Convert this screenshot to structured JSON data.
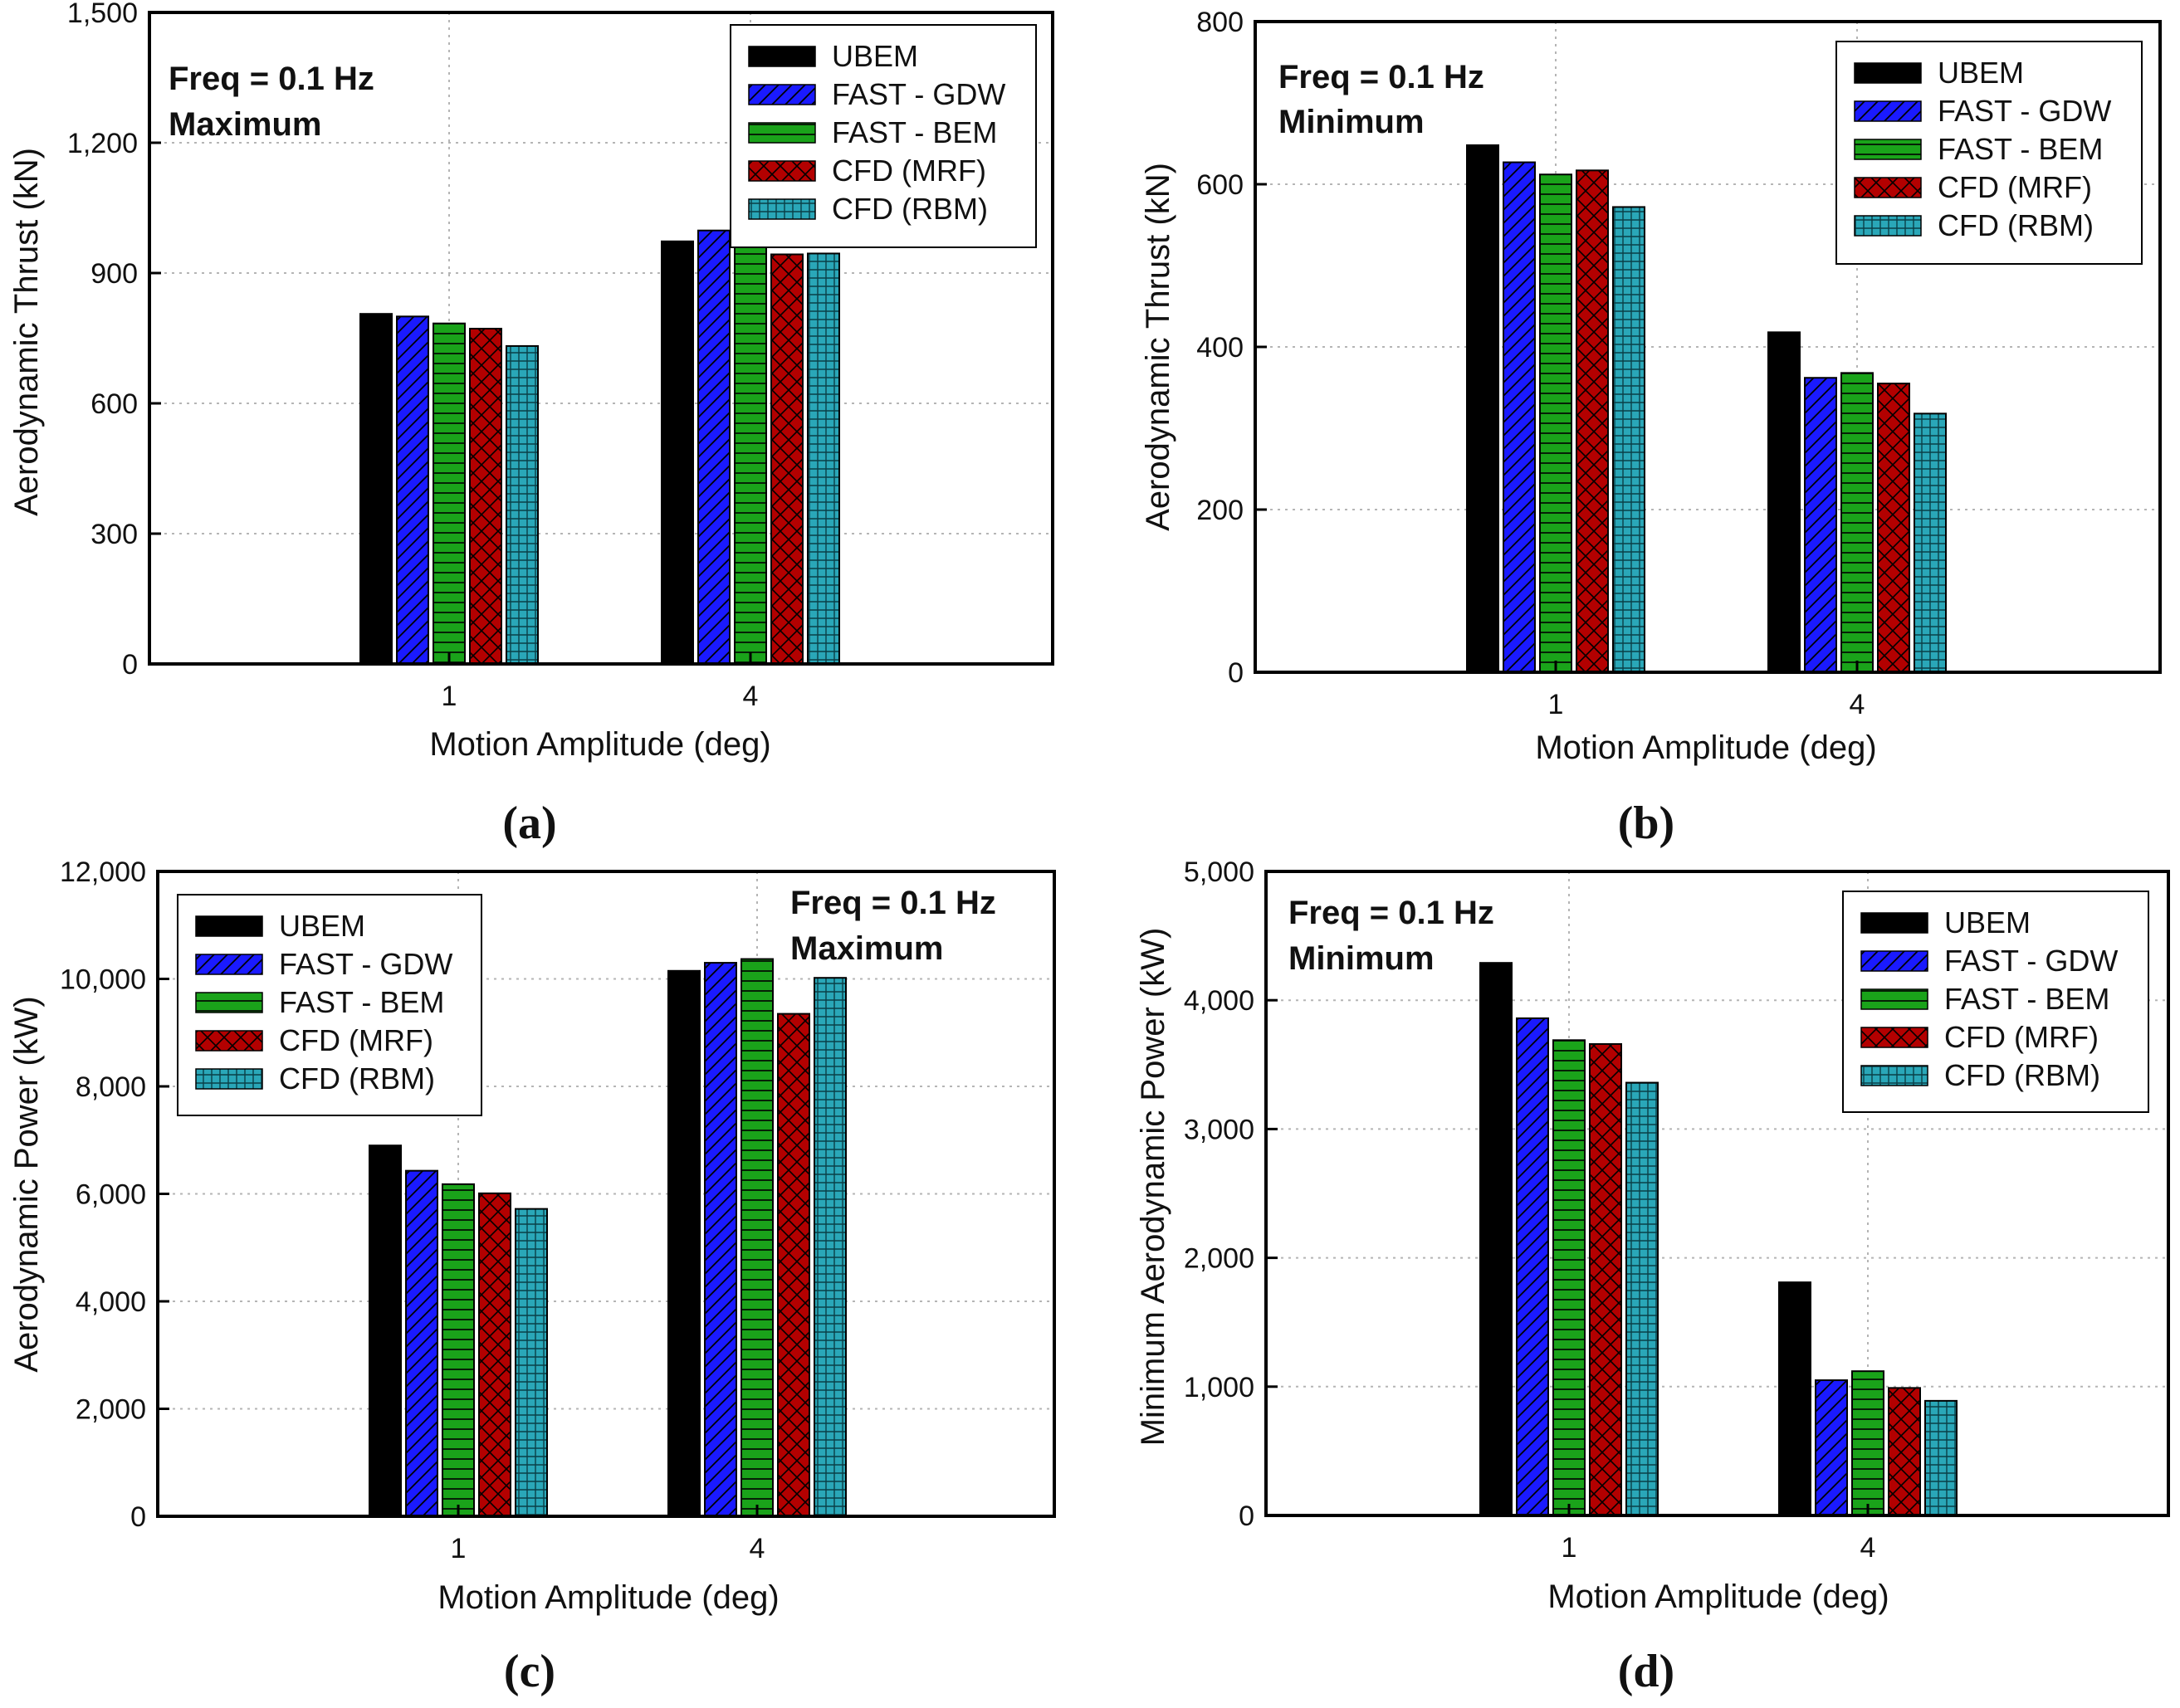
{
  "series_styles": [
    {
      "name": "UBEM",
      "color": "#000000",
      "pattern": "solid"
    },
    {
      "name": "FAST - GDW",
      "color": "#1a1aff",
      "pattern": "diagonal"
    },
    {
      "name": "FAST - BEM",
      "color": "#1aa31a",
      "pattern": "horizontal"
    },
    {
      "name": "CFD (MRF)",
      "color": "#b30000",
      "pattern": "crosshatch"
    },
    {
      "name": "CFD (RBM)",
      "color": "#2aa7b8",
      "pattern": "grid"
    }
  ],
  "chart_data": [
    {
      "panel": "(a)",
      "type": "bar",
      "title": "",
      "annotation": [
        "Freq = 0.1 Hz",
        "Maximum"
      ],
      "xlabel": "Motion Amplitude (deg)",
      "ylabel": "Aerodynamic Thrust (kN)",
      "categories": [
        "1",
        "4"
      ],
      "ylim": [
        0,
        1500
      ],
      "yticks": [
        0,
        300,
        600,
        900,
        1200,
        1500
      ],
      "ytick_labels": [
        "0",
        "300",
        "600",
        "900",
        "1,200",
        "1,500"
      ],
      "legend_position": "top-right",
      "grid": true,
      "series": [
        {
          "name": "UBEM",
          "values": [
            806,
            973
          ]
        },
        {
          "name": "FAST - GDW",
          "values": [
            800,
            998
          ]
        },
        {
          "name": "FAST - BEM",
          "values": [
            784,
            1003
          ]
        },
        {
          "name": "CFD (MRF)",
          "values": [
            772,
            943
          ]
        },
        {
          "name": "CFD (RBM)",
          "values": [
            732,
            945
          ]
        }
      ]
    },
    {
      "panel": "(b)",
      "type": "bar",
      "title": "",
      "annotation": [
        "Freq = 0.1 Hz",
        "Minimum"
      ],
      "xlabel": "Motion Amplitude (deg)",
      "ylabel": "Aerodynamic Thrust (kN)",
      "categories": [
        "1",
        "4"
      ],
      "ylim": [
        0,
        800
      ],
      "yticks": [
        0,
        200,
        400,
        600,
        800
      ],
      "ytick_labels": [
        "0",
        "200",
        "400",
        "600",
        "800"
      ],
      "legend_position": "top-right",
      "grid": true,
      "series": [
        {
          "name": "UBEM",
          "values": [
            648,
            418
          ]
        },
        {
          "name": "FAST - GDW",
          "values": [
            627,
            362
          ]
        },
        {
          "name": "FAST - BEM",
          "values": [
            612,
            368
          ]
        },
        {
          "name": "CFD (MRF)",
          "values": [
            617,
            355
          ]
        },
        {
          "name": "CFD (RBM)",
          "values": [
            572,
            318
          ]
        }
      ]
    },
    {
      "panel": "(c)",
      "type": "bar",
      "title": "",
      "annotation": [
        "Freq = 0.1 Hz",
        "Maximum"
      ],
      "xlabel": "Motion Amplitude (deg)",
      "ylabel": "Aerodynamic Power (kW)",
      "categories": [
        "1",
        "4"
      ],
      "ylim": [
        0,
        12000
      ],
      "yticks": [
        0,
        2000,
        4000,
        6000,
        8000,
        10000,
        12000
      ],
      "ytick_labels": [
        "0",
        "2,000",
        "4,000",
        "6,000",
        "8,000",
        "10,000",
        "12,000"
      ],
      "legend_position": "top-left",
      "grid": true,
      "series": [
        {
          "name": "UBEM",
          "values": [
            6900,
            10150
          ]
        },
        {
          "name": "FAST - GDW",
          "values": [
            6430,
            10300
          ]
        },
        {
          "name": "FAST - BEM",
          "values": [
            6180,
            10370
          ]
        },
        {
          "name": "CFD (MRF)",
          "values": [
            6010,
            9350
          ]
        },
        {
          "name": "CFD (RBM)",
          "values": [
            5720,
            10020
          ]
        }
      ]
    },
    {
      "panel": "(d)",
      "type": "bar",
      "title": "",
      "annotation": [
        "Freq = 0.1 Hz",
        "Minimum"
      ],
      "xlabel": "Motion Amplitude (deg)",
      "ylabel": "Minimum Aerodynamic Power (kW)",
      "categories": [
        "1",
        "4"
      ],
      "ylim": [
        0,
        5000
      ],
      "yticks": [
        0,
        1000,
        2000,
        3000,
        4000,
        5000
      ],
      "ytick_labels": [
        "0",
        "1,000",
        "2,000",
        "3,000",
        "4,000",
        "5,000"
      ],
      "legend_position": "top-right",
      "grid": true,
      "series": [
        {
          "name": "UBEM",
          "values": [
            4290,
            1810
          ]
        },
        {
          "name": "FAST - GDW",
          "values": [
            3860,
            1050
          ]
        },
        {
          "name": "FAST - BEM",
          "values": [
            3690,
            1120
          ]
        },
        {
          "name": "CFD (MRF)",
          "values": [
            3660,
            990
          ]
        },
        {
          "name": "CFD (RBM)",
          "values": [
            3360,
            890
          ]
        }
      ]
    }
  ]
}
